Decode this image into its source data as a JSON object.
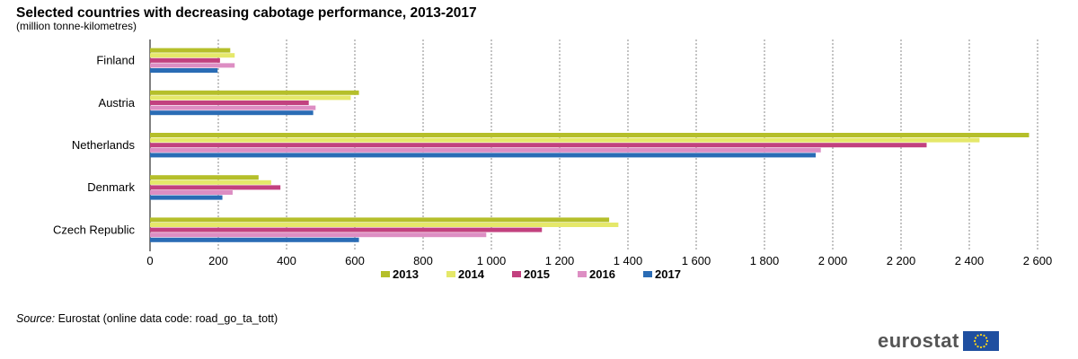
{
  "chart_data": {
    "type": "bar",
    "orientation": "horizontal",
    "title": "Selected countries with decreasing cabotage performance, 2013-2017",
    "subtitle": "(million tonne-kilometres)",
    "categories": [
      "Finland",
      "Austria",
      "Netherlands",
      "Denmark",
      "Czech Republic"
    ],
    "series": [
      {
        "name": "2013",
        "color": "#b5bf2a",
        "values": [
          235,
          612,
          2575,
          318,
          1345
        ]
      },
      {
        "name": "2014",
        "color": "#e5e86a",
        "values": [
          248,
          588,
          2430,
          355,
          1372
        ]
      },
      {
        "name": "2015",
        "color": "#c2417f",
        "values": [
          205,
          465,
          2275,
          382,
          1148
        ]
      },
      {
        "name": "2016",
        "color": "#dd8ec3",
        "values": [
          248,
          485,
          1965,
          242,
          985
        ]
      },
      {
        "name": "2017",
        "color": "#2a6cb5",
        "values": [
          198,
          478,
          1950,
          212,
          612
        ]
      }
    ],
    "xlim": [
      0,
      2600
    ],
    "xticks": [
      0,
      200,
      400,
      600,
      800,
      1000,
      1200,
      1400,
      1600,
      1800,
      2000,
      2200,
      2400,
      2600
    ],
    "xtick_labels": [
      "0",
      "200",
      "400",
      "600",
      "800",
      "1 000",
      "1 200",
      "1 400",
      "1 600",
      "1 800",
      "2 000",
      "2 200",
      "2 400",
      "2 600"
    ],
    "grid": "vertical dotted",
    "legend_position": "bottom"
  },
  "source": {
    "label": "Source:",
    "text": " Eurostat (online data code: road_go_ta_tott)"
  },
  "logo": {
    "text": "eurostat",
    "icon": "eu-flag-icon"
  }
}
